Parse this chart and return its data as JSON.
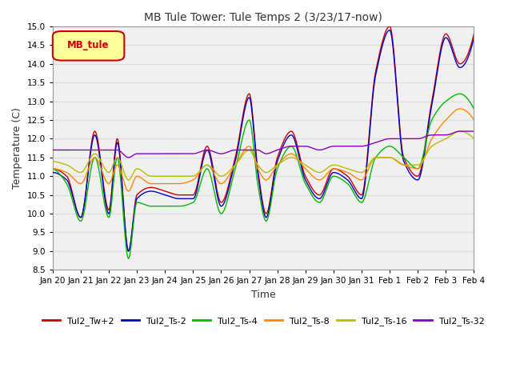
{
  "title": "MB Tule Tower: Tule Temps 2 (3/23/17-now)",
  "xlabel": "Time",
  "ylabel": "Temperature (C)",
  "ylim": [
    8.5,
    15.0
  ],
  "yticks": [
    8.5,
    9.0,
    9.5,
    10.0,
    10.5,
    11.0,
    11.5,
    12.0,
    12.5,
    13.0,
    13.5,
    14.0,
    14.5,
    15.0
  ],
  "legend_label": "MB_tule",
  "legend_box_color": "#ffff99",
  "legend_box_edge": "#cc0000",
  "series": {
    "Tul2_Tw+2": {
      "color": "#cc0000",
      "lw": 1.0
    },
    "Tul2_Ts-2": {
      "color": "#0000cc",
      "lw": 1.0
    },
    "Tul2_Ts-4": {
      "color": "#00bb00",
      "lw": 1.0
    },
    "Tul2_Ts-8": {
      "color": "#ff8800",
      "lw": 1.0
    },
    "Tul2_Ts-16": {
      "color": "#bbbb00",
      "lw": 1.0
    },
    "Tul2_Ts-32": {
      "color": "#8800bb",
      "lw": 1.0
    }
  },
  "plot_bg": "#f0f0f0",
  "background_color": "#ffffff",
  "grid_color": "#dddddd"
}
